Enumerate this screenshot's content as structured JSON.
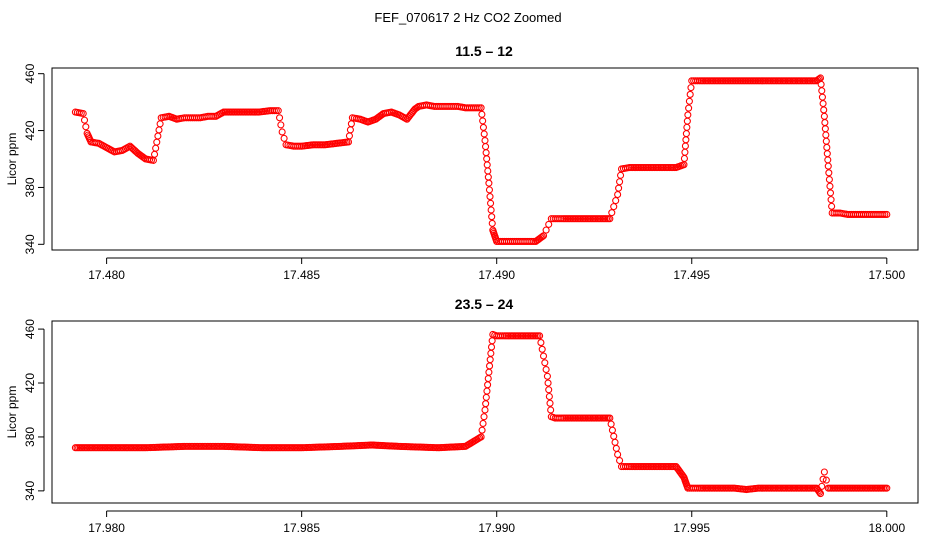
{
  "title": "FEF_070617  2 Hz CO2 Zoomed",
  "colors": {
    "points": "#ff0000",
    "axes": "#000000",
    "background": "#ffffff"
  },
  "chart_data": [
    {
      "type": "scatter",
      "title": "11.5 – 12",
      "xlabel": "",
      "ylabel": "Licor ppm",
      "xlim": [
        17.4786,
        17.5008
      ],
      "ylim": [
        336,
        464
      ],
      "xticks": [
        17.48,
        17.485,
        17.49,
        17.495,
        17.5
      ],
      "xtick_labels": [
        "17.480",
        "17.485",
        "17.490",
        "17.495",
        "17.500"
      ],
      "yticks": [
        340,
        380,
        420,
        460
      ],
      "ytick_labels": [
        "340",
        "380",
        "420",
        "460"
      ],
      "grid": false,
      "marker": "open-circle",
      "series": [
        {
          "x": [
            17.4792,
            17.4794,
            17.4795,
            17.4796,
            17.4798,
            17.48,
            17.4802,
            17.4804,
            17.4806,
            17.4808,
            17.481,
            17.4812,
            17.4814,
            17.4816,
            17.4818,
            17.482,
            17.4822,
            17.4824,
            17.4826,
            17.4828,
            17.483,
            17.4833,
            17.4836,
            17.4839,
            17.4842,
            17.4844,
            17.4845,
            17.4846,
            17.4848,
            17.485,
            17.4853,
            17.4856,
            17.4859,
            17.4862,
            17.4863,
            17.4865,
            17.4867,
            17.4869,
            17.4871,
            17.4873,
            17.4875,
            17.4877,
            17.4879,
            17.488,
            17.4882,
            17.4884,
            17.4886,
            17.4888,
            17.489,
            17.4892,
            17.4894,
            17.4896,
            17.4897,
            17.4898,
            17.4899,
            17.49,
            17.4902,
            17.4904,
            17.4906,
            17.4908,
            17.491,
            17.4912,
            17.4914,
            17.4915,
            17.4917,
            17.492,
            17.4923,
            17.4926,
            17.4929,
            17.4931,
            17.4932,
            17.4934,
            17.4937,
            17.494,
            17.4943,
            17.4946,
            17.4948,
            17.4949,
            17.495,
            17.4952,
            17.4955,
            17.4958,
            17.4961,
            17.4964,
            17.4967,
            17.497,
            17.4973,
            17.4976,
            17.4979,
            17.4982,
            17.4983,
            17.4984,
            17.4985,
            17.4986,
            17.4988,
            17.499,
            17.4992,
            17.4994,
            17.4996,
            17.4998,
            17.5
          ],
          "y": [
            433,
            432,
            418,
            412,
            411,
            408,
            405,
            406,
            409,
            404,
            400,
            399,
            429,
            430,
            428,
            429,
            429,
            429,
            430,
            430,
            433,
            433,
            433,
            433,
            434,
            434,
            419,
            410,
            409,
            409,
            410,
            410,
            411,
            412,
            429,
            428,
            426,
            428,
            432,
            433,
            431,
            428,
            435,
            437,
            438,
            437,
            437,
            437,
            437,
            436,
            436,
            436,
            413,
            383,
            350,
            342,
            342,
            342,
            342,
            342,
            342,
            346,
            358,
            358,
            358,
            358,
            358,
            358,
            358,
            375,
            393,
            394,
            394,
            394,
            394,
            394,
            396,
            431,
            455,
            455,
            455,
            455,
            455,
            455,
            455,
            455,
            455,
            455,
            455,
            455,
            457,
            430,
            395,
            362,
            362,
            361,
            361,
            361,
            361,
            361,
            361
          ]
        }
      ]
    },
    {
      "type": "scatter",
      "title": "23.5 – 24",
      "xlabel": "",
      "ylabel": "Licor ppm",
      "xlim": [
        17.9786,
        18.0008
      ],
      "ylim": [
        331,
        466
      ],
      "xticks": [
        17.98,
        17.985,
        17.99,
        17.995,
        18.0
      ],
      "xtick_labels": [
        "17.980",
        "17.985",
        "17.990",
        "17.995",
        "18.000"
      ],
      "yticks": [
        340,
        380,
        420,
        460
      ],
      "ytick_labels": [
        "340",
        "380",
        "420",
        "460"
      ],
      "grid": false,
      "marker": "open-circle",
      "series": [
        {
          "x": [
            17.9792,
            17.98,
            17.981,
            17.982,
            17.983,
            17.984,
            17.985,
            17.986,
            17.9868,
            17.9875,
            17.9885,
            17.9892,
            17.9896,
            17.9897,
            17.9898,
            17.9899,
            17.99,
            17.9902,
            17.9905,
            17.9908,
            17.9911,
            17.9913,
            17.9914,
            17.9915,
            17.9917,
            17.992,
            17.9923,
            17.9926,
            17.9929,
            17.9931,
            17.9932,
            17.9934,
            17.9937,
            17.994,
            17.9943,
            17.9946,
            17.9948,
            17.9949,
            17.995,
            17.9952,
            17.9955,
            17.9958,
            17.9961,
            17.9964,
            17.9967,
            17.997,
            17.9973,
            17.9976,
            17.9979,
            17.9982,
            17.9983,
            17.9984,
            17.9985,
            17.9988,
            17.9991,
            17.9994,
            17.9997,
            18.0
          ],
          "y": [
            372,
            372,
            372,
            373,
            373,
            372,
            372,
            373,
            374,
            373,
            372,
            373,
            380,
            400,
            428,
            456,
            455,
            455,
            455,
            455,
            455,
            425,
            395,
            394,
            394,
            394,
            394,
            394,
            394,
            367,
            358,
            358,
            358,
            358,
            358,
            358,
            350,
            342,
            342,
            342,
            342,
            342,
            342,
            341,
            342,
            342,
            342,
            342,
            342,
            342,
            338,
            354,
            342,
            342,
            342,
            342,
            342,
            342
          ]
        }
      ]
    }
  ]
}
